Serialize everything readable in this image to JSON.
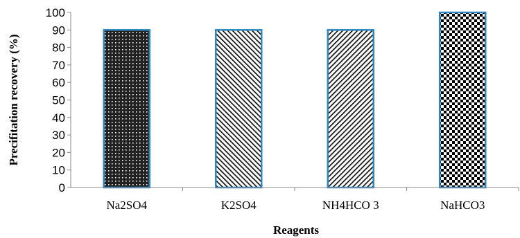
{
  "chart_data": {
    "type": "bar",
    "title": "",
    "xlabel": "Reagents",
    "ylabel": "Precifitation recovery (%)",
    "categories": [
      "Na2SO4",
      "K2SO4",
      "NH4HCO 3",
      "NaHCO3"
    ],
    "values": [
      90,
      90,
      90,
      100
    ],
    "ylim": [
      0,
      100
    ],
    "yticks": [
      "0",
      "10",
      "20",
      "30",
      "40",
      "50",
      "60",
      "70",
      "80",
      "90",
      "100"
    ],
    "grid": false,
    "legend": "none",
    "bar_outline_color": "#2e86c1",
    "bar_patterns": [
      "dots-dense",
      "diagonal-back",
      "diagonal-fwd",
      "checker-large"
    ]
  }
}
